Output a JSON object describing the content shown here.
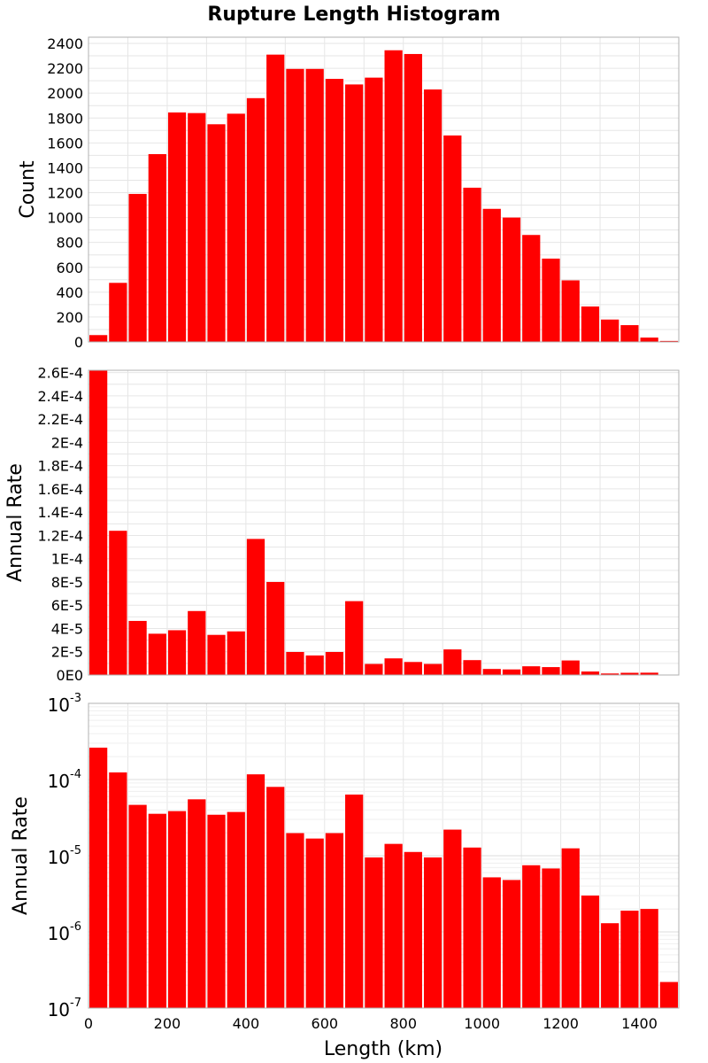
{
  "chart_data": {
    "type": "bar",
    "title": "Rupture Length Histogram",
    "xlabel": "Length (km)",
    "xlim": [
      0,
      1500
    ],
    "x_ticks": [
      0,
      200,
      400,
      600,
      800,
      1000,
      1200,
      1400
    ],
    "bin_width": 50,
    "bin_starts": [
      0,
      50,
      100,
      150,
      200,
      250,
      300,
      350,
      400,
      450,
      500,
      550,
      600,
      650,
      700,
      750,
      800,
      850,
      900,
      950,
      1000,
      1050,
      1100,
      1150,
      1200,
      1250,
      1300,
      1350,
      1400,
      1450
    ],
    "bar_color": "#ff0000",
    "grid": true,
    "panels": [
      {
        "ylabel": "Count",
        "scale": "linear",
        "ylim": [
          0,
          2450
        ],
        "y_ticks": [
          0,
          200,
          400,
          600,
          800,
          1000,
          1200,
          1400,
          1600,
          1800,
          2000,
          2200,
          2400
        ],
        "y_tick_labels": [
          "0",
          "200",
          "400",
          "600",
          "800",
          "1000",
          "1200",
          "1400",
          "1600",
          "1800",
          "2000",
          "2200",
          "2400"
        ],
        "values": [
          55,
          475,
          1190,
          1510,
          1845,
          1840,
          1750,
          1835,
          1960,
          2310,
          2195,
          2195,
          2115,
          2070,
          2125,
          2345,
          2315,
          2030,
          1660,
          1240,
          1070,
          1000,
          860,
          670,
          495,
          285,
          180,
          135,
          35,
          8
        ]
      },
      {
        "ylabel": "Annual Rate",
        "scale": "linear",
        "ylim": [
          0,
          0.000262
        ],
        "y_ticks": [
          0,
          2e-05,
          4e-05,
          6e-05,
          8e-05,
          0.0001,
          0.00012,
          0.00014,
          0.00016,
          0.00018,
          0.0002,
          0.00022,
          0.00024,
          0.00026
        ],
        "y_tick_labels": [
          "0E0",
          "2E-5",
          "4E-5",
          "6E-5",
          "8E-5",
          "1E-4",
          "1.2E-4",
          "1.4E-4",
          "1.6E-4",
          "1.8E-4",
          "2E-4",
          "2.2E-4",
          "2.4E-4",
          "2.6E-4"
        ],
        "values": [
          0.000262,
          0.000124,
          4.65e-05,
          3.55e-05,
          3.85e-05,
          5.5e-05,
          3.45e-05,
          3.75e-05,
          0.000117,
          8e-05,
          1.98e-05,
          1.68e-05,
          1.98e-05,
          6.35e-05,
          9.5e-06,
          1.43e-05,
          1.12e-05,
          9.5e-06,
          2.2e-05,
          1.28e-05,
          5.2e-06,
          4.8e-06,
          7.5e-06,
          6.8e-06,
          1.25e-05,
          3e-06,
          1.3e-06,
          1.9e-06,
          2e-06,
          2.2e-07
        ]
      },
      {
        "ylabel": "Annual Rate",
        "scale": "log",
        "ylim": [
          1e-07,
          0.001
        ],
        "y_ticks": [
          1e-07,
          1e-06,
          1e-05,
          0.0001,
          0.001
        ],
        "y_tick_labels": [
          {
            "base": "10",
            "exp": "-7"
          },
          {
            "base": "10",
            "exp": "-6"
          },
          {
            "base": "10",
            "exp": "-5"
          },
          {
            "base": "10",
            "exp": "-4"
          },
          {
            "base": "10",
            "exp": "-3"
          }
        ],
        "values": [
          0.000262,
          0.000124,
          4.65e-05,
          3.55e-05,
          3.85e-05,
          5.5e-05,
          3.45e-05,
          3.75e-05,
          0.000117,
          8e-05,
          1.98e-05,
          1.68e-05,
          1.98e-05,
          6.35e-05,
          9.5e-06,
          1.43e-05,
          1.12e-05,
          9.5e-06,
          2.2e-05,
          1.28e-05,
          5.2e-06,
          4.8e-06,
          7.5e-06,
          6.8e-06,
          1.25e-05,
          3e-06,
          1.3e-06,
          1.9e-06,
          2e-06,
          2.2e-07
        ]
      }
    ]
  }
}
